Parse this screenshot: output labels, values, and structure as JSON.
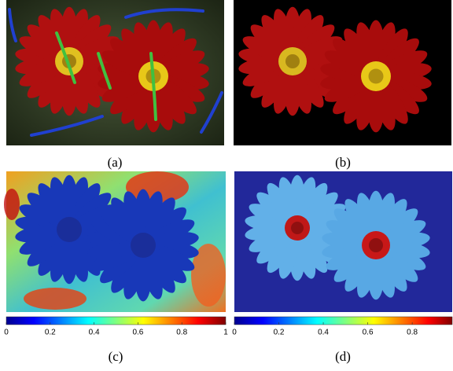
{
  "panels": [
    {
      "caption": "(a)"
    },
    {
      "caption": "(b)"
    },
    {
      "caption": "(c)"
    },
    {
      "caption": "(d)"
    }
  ],
  "colorbars": [
    {
      "lim": [
        0,
        1
      ],
      "ticks": [
        0,
        0.2,
        0.4,
        0.6,
        0.8,
        1
      ]
    },
    {
      "lim": [
        0,
        0.98
      ],
      "ticks": [
        0,
        0.2,
        0.4,
        0.6,
        0.8
      ]
    }
  ]
}
